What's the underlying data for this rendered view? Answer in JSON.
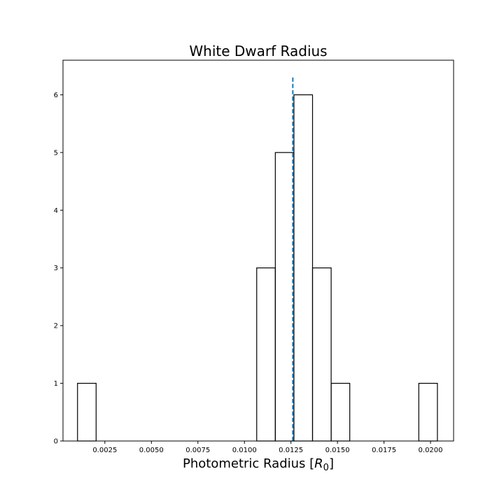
{
  "chart_data": {
    "type": "histogram",
    "title": "White Dwarf Radius",
    "xlabel_text": "Photometric Radius [",
    "xlabel_symbol": "R",
    "xlabel_subscript": "0",
    "xlabel_close": "]",
    "xlim": [
      0.00025,
      0.02124
    ],
    "ylim": [
      0,
      6.6
    ],
    "xticks": [
      0.0025,
      0.005,
      0.0075,
      0.01,
      0.0125,
      0.015,
      0.0175,
      0.02
    ],
    "xtick_labels": [
      "0.0025",
      "0.0050",
      "0.0075",
      "0.0100",
      "0.0125",
      "0.0150",
      "0.0175",
      "0.0200"
    ],
    "yticks": [
      0,
      1,
      2,
      3,
      4,
      5,
      6
    ],
    "ytick_labels": [
      "0",
      "1",
      "2",
      "3",
      "4",
      "5",
      "6"
    ],
    "bin_edges": [
      0.00103,
      0.00203,
      0.00303,
      0.00403,
      0.00503,
      0.00603,
      0.00703,
      0.00803,
      0.00903,
      0.01003,
      0.01066,
      0.01166,
      0.01266,
      0.01366,
      0.01466,
      0.01566,
      0.01666,
      0.01766,
      0.01866,
      0.01937,
      0.02037
    ],
    "counts": [
      1,
      0,
      0,
      0,
      0,
      0,
      0,
      0,
      0,
      0,
      3,
      5,
      6,
      3,
      1,
      0,
      0,
      0,
      0,
      1
    ],
    "reference_line": {
      "x": 0.0126,
      "y_top": 6.3,
      "style": "dashed",
      "color": "#1f77b4"
    },
    "histogram_color": "#000000",
    "grid": false
  }
}
